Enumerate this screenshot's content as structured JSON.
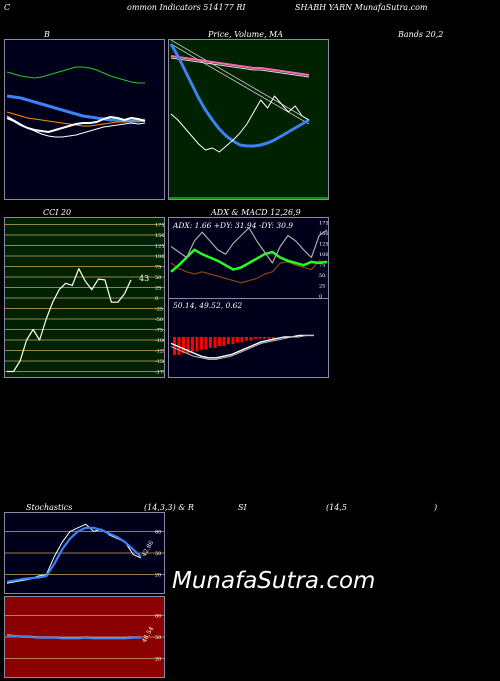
{
  "header": {
    "left": "C",
    "middle": "ommon  Indicators 514177 RI",
    "right": "SHABH YARN  MunafaSutra.com"
  },
  "titles": {
    "bands": "B",
    "price": "Price,  Volume,  MA",
    "bands_right": "Bands 20,2",
    "cci": "CCI 20",
    "adx": "ADX  & MACD 12,26,9",
    "stoch_left": "Stochastics",
    "stoch_mid": "(14,3,3) & R",
    "rsi": "SI",
    "rsi_params": "(14,5",
    "rsi_close": ")"
  },
  "adx_stats": "ADX: 1.66  +DY: 31.94  -DY: 30.9",
  "macd_stats": "50.14,  49.52,  0.62",
  "cci_value": "43",
  "stoch_value": "42.86",
  "rsi_value": "48.54",
  "watermark": "MunafaSutra.com",
  "colors": {
    "panel_bg": "#00001a",
    "price_bg": "#002200",
    "cci_bg": "#002200",
    "rsi_bg": "#8b0000",
    "cci_grid": "#c8a85a",
    "macd_bar": "#ff0000",
    "blue": "#3b82f6",
    "green_line": "#22ff22"
  },
  "chart_data": [
    {
      "type": "line",
      "panel": "bollinger",
      "series": [
        {
          "values": [
            72,
            74,
            76,
            77,
            78,
            77,
            75,
            73,
            71,
            69,
            67,
            67,
            68,
            70,
            73,
            76,
            78,
            80,
            82,
            83,
            83
          ]
        },
        {
          "values": [
            96,
            97,
            98,
            100,
            102,
            104,
            106,
            108,
            110,
            112,
            114,
            116,
            117,
            118,
            119,
            120,
            120,
            121,
            121,
            121,
            120
          ]
        },
        {
          "values": [
            112,
            114,
            116,
            118,
            119,
            120,
            121,
            122,
            123,
            124,
            125,
            126,
            126,
            125,
            124,
            123,
            122,
            122,
            121,
            121,
            121
          ]
        },
        {
          "values": [
            118,
            121,
            125,
            128,
            130,
            131,
            132,
            130,
            128,
            126,
            124,
            123,
            123,
            122,
            119,
            117,
            118,
            120,
            118,
            119,
            121
          ]
        },
        {
          "values": [
            116,
            120,
            124,
            128,
            131,
            134,
            136,
            137,
            137,
            136,
            135,
            133,
            131,
            129,
            127,
            126,
            125,
            124,
            123,
            124,
            123
          ]
        }
      ]
    },
    {
      "type": "line",
      "panel": "price_volume_ma",
      "series": [
        {
          "values": [
            44,
            56,
            70,
            84,
            98,
            110,
            120,
            129,
            136,
            141,
            145,
            146,
            146,
            145,
            143,
            140,
            136,
            132,
            128,
            124,
            120
          ]
        },
        {
          "values": [
            56,
            57,
            58,
            59,
            60,
            61,
            62,
            63,
            64,
            65,
            66,
            67,
            68,
            68,
            69,
            70,
            71,
            72,
            73,
            74,
            75
          ]
        },
        {
          "values": [
            114,
            120,
            128,
            136,
            144,
            150,
            148,
            152,
            146,
            140,
            133,
            124,
            112,
            100,
            108,
            96,
            104,
            112,
            106,
            116,
            120
          ]
        }
      ]
    },
    {
      "type": "line",
      "panel": "cci",
      "yticks": [
        175,
        150,
        125,
        100,
        75,
        50,
        25,
        0,
        -25,
        -50,
        -75,
        -100,
        -125,
        -150,
        -175
      ],
      "values": [
        -175,
        -175,
        -150,
        -100,
        -75,
        -100,
        -50,
        -10,
        20,
        35,
        30,
        70,
        40,
        20,
        45,
        43,
        -10,
        -10,
        10,
        43
      ]
    },
    {
      "type": "line",
      "panel": "adx",
      "yticks": [
        175,
        150,
        125,
        100,
        75,
        50,
        25,
        0
      ],
      "series": [
        {
          "values": [
            30,
            25,
            22,
            20,
            22,
            20,
            18,
            16,
            14,
            12,
            14,
            16,
            20,
            22,
            30,
            31,
            28,
            26,
            24,
            32,
            30
          ]
        },
        {
          "values": [
            22,
            28,
            35,
            42,
            38,
            35,
            32,
            28,
            24,
            26,
            30,
            34,
            38,
            40,
            35,
            32,
            30,
            28,
            31,
            30,
            31
          ]
        },
        {
          "values": [
            45,
            40,
            35,
            50,
            58,
            50,
            42,
            38,
            48,
            55,
            62,
            50,
            40,
            30,
            45,
            55,
            50,
            42,
            35,
            55,
            60
          ]
        }
      ]
    },
    {
      "type": "bar",
      "panel": "macd",
      "histogram": [
        -10,
        -10,
        -9,
        -9,
        -8,
        -8,
        -7,
        -7,
        -6,
        -6,
        -5,
        -5,
        -4,
        -4,
        -3,
        -3,
        -2,
        -2,
        -1,
        -1,
        -1,
        -1,
        -1,
        0,
        0,
        0,
        0,
        0
      ],
      "series": [
        {
          "values": [
            -4,
            -6,
            -8,
            -10,
            -12,
            -13,
            -13,
            -12,
            -11,
            -9,
            -7,
            -5,
            -3,
            -2,
            -1,
            0,
            0,
            1,
            1,
            1
          ]
        },
        {
          "values": [
            -6,
            -8,
            -10,
            -12,
            -13,
            -14,
            -14,
            -13,
            -12,
            -10,
            -8,
            -6,
            -4,
            -3,
            -2,
            -1,
            0,
            0,
            1,
            1
          ]
        }
      ]
    },
    {
      "type": "line",
      "panel": "stochastics",
      "yticks": [
        80,
        50,
        20
      ],
      "series": [
        {
          "values": [
            8,
            10,
            12,
            14,
            18,
            20,
            45,
            65,
            80,
            85,
            90,
            80,
            83,
            75,
            70,
            65,
            48,
            43
          ]
        },
        {
          "values": [
            10,
            12,
            14,
            15,
            16,
            18,
            35,
            55,
            70,
            80,
            85,
            85,
            82,
            77,
            72,
            65,
            55,
            45
          ]
        }
      ]
    },
    {
      "type": "line",
      "panel": "rsi",
      "yticks": [
        80,
        50,
        20
      ],
      "series": [
        {
          "values": [
            52,
            51,
            50,
            50,
            49,
            49,
            49,
            48,
            48,
            48,
            49,
            48,
            48,
            48,
            48,
            48,
            49,
            49
          ]
        }
      ]
    }
  ]
}
